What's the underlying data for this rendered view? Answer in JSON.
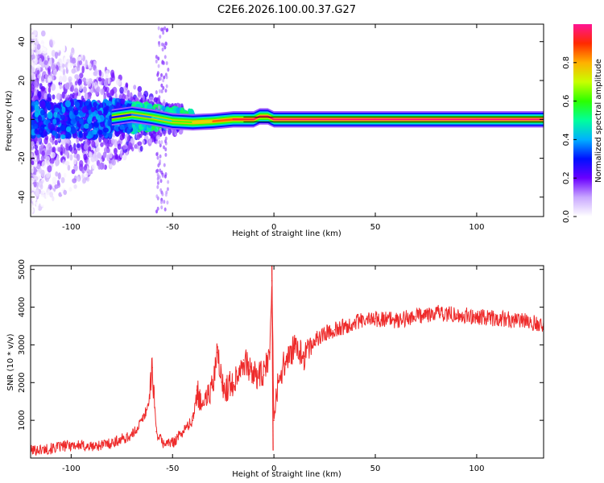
{
  "title": "C2E6.2026.100.00.37.G27",
  "chart_data": [
    {
      "type": "heatmap",
      "xlabel": "Height of straight line (km)",
      "ylabel": "Frequency (Hz)",
      "xlim": [
        -120,
        133
      ],
      "ylim": [
        -50,
        49
      ],
      "xticks": [
        -100,
        -50,
        0,
        50,
        100
      ],
      "yticks": [
        -40,
        -20,
        0,
        20,
        40
      ],
      "colorbar": {
        "label": "Normalized spectral amplitude",
        "range": [
          0,
          1
        ],
        "ticks": [
          "0.0",
          "0.2",
          "0.4",
          "0.6",
          "0.8"
        ],
        "tick_values": [
          0.0,
          0.2,
          0.4,
          0.6,
          0.8
        ],
        "colors": [
          "#ffffff",
          "#c9a8ff",
          "#6a00ff",
          "#0010ff",
          "#00b0ff",
          "#00ff9c",
          "#2cff00",
          "#c8ff00",
          "#ffb000",
          "#ff2a00",
          "#ff1493"
        ]
      },
      "ridge": [
        {
          "x": -80,
          "y": 1.0,
          "a": 0.25
        },
        {
          "x": -70,
          "y": 2.5,
          "a": 0.35
        },
        {
          "x": -60,
          "y": 1.0,
          "a": 0.4
        },
        {
          "x": -50,
          "y": -1.0,
          "a": 0.55
        },
        {
          "x": -40,
          "y": -1.5,
          "a": 0.7
        },
        {
          "x": -30,
          "y": -1.0,
          "a": 0.8
        },
        {
          "x": -20,
          "y": 0.0,
          "a": 0.92
        },
        {
          "x": -10,
          "y": 0.0,
          "a": 0.95
        },
        {
          "x": -7,
          "y": 1.5,
          "a": 0.95
        },
        {
          "x": -3,
          "y": 1.5,
          "a": 0.95
        },
        {
          "x": 0,
          "y": 0.0,
          "a": 0.97
        },
        {
          "x": 50,
          "y": 0.0,
          "a": 0.98
        },
        {
          "x": 100,
          "y": 0.0,
          "a": 0.98
        },
        {
          "x": 133,
          "y": 0.0,
          "a": 0.98
        }
      ]
    },
    {
      "type": "line",
      "xlabel": "Height of straight line (km)",
      "ylabel": "SNR (10 * v/v)",
      "xlim": [
        -120,
        133
      ],
      "ylim": [
        0,
        5100
      ],
      "xticks": [
        -100,
        -50,
        0,
        50,
        100
      ],
      "yticks": [
        1000,
        2000,
        3000,
        4000,
        5000
      ],
      "color": "#ee2a2a",
      "series": [
        {
          "name": "SNR",
          "x": [
            -120,
            -110,
            -100,
            -90,
            -80,
            -75,
            -70,
            -65,
            -62,
            -60,
            -58,
            -55,
            -50,
            -45,
            -40,
            -38,
            -35,
            -30,
            -28,
            -25,
            -20,
            -15,
            -10,
            -5,
            -2,
            -1,
            0,
            2,
            5,
            10,
            15,
            20,
            25,
            30,
            40,
            50,
            60,
            70,
            80,
            90,
            100,
            110,
            120,
            133
          ],
          "y": [
            200,
            250,
            350,
            300,
            400,
            500,
            600,
            1000,
            1400,
            2400,
            700,
            400,
            400,
            700,
            1000,
            1800,
            1400,
            1900,
            2800,
            1800,
            2000,
            2600,
            2200,
            2200,
            2800,
            4700,
            1000,
            2000,
            2500,
            2900,
            2700,
            3100,
            3300,
            3400,
            3600,
            3700,
            3650,
            3750,
            3850,
            3800,
            3750,
            3700,
            3650,
            3550
          ]
        }
      ]
    }
  ]
}
